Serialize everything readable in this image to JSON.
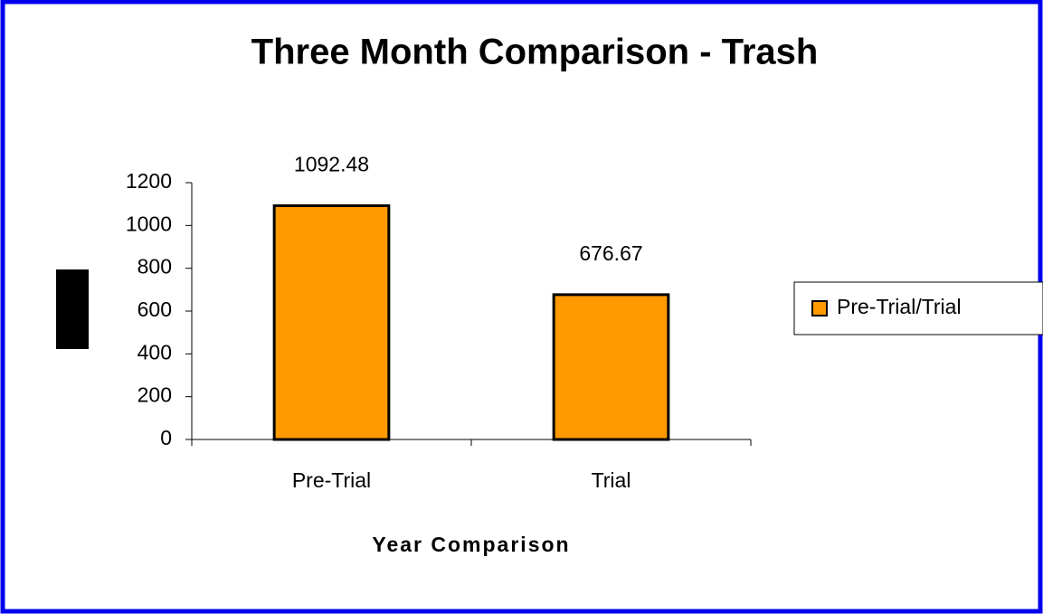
{
  "chart_data": {
    "type": "bar",
    "title": "Three Month Comparison - Trash",
    "x_label": "Year Comparison",
    "categories": [
      "Pre-Trial",
      "Trial"
    ],
    "series": [
      {
        "name": "Pre-Trial/Trial",
        "color": "#ff9900",
        "values": [
          1092.48,
          676.67
        ]
      }
    ],
    "ylim": [
      0,
      1200
    ],
    "yticks": [
      0,
      200,
      400,
      600,
      800,
      1000,
      1200
    ],
    "legend": "right"
  }
}
